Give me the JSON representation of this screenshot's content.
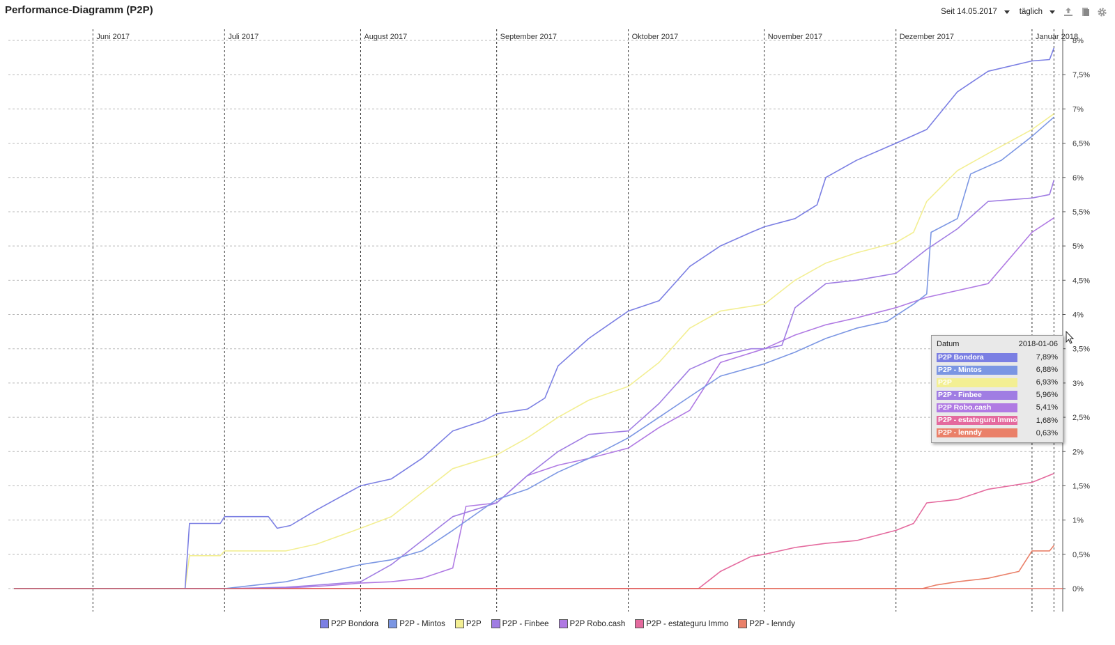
{
  "title": "Performance-Diagramm (P2P)",
  "toolbar": {
    "period_label": "Seit 14.05.2017",
    "interval_label": "täglich",
    "icons": [
      "export-icon",
      "bookmark-icon",
      "gear-icon"
    ]
  },
  "colors": {
    "bondora": "#7b7fe3",
    "mintos": "#7b96e3",
    "p2p": "#f3ef93",
    "finbee": "#a07de3",
    "robocash": "#b07ae3",
    "estateguru": "#e46a9e",
    "lenndy": "#ea8069"
  },
  "chart_data": {
    "type": "line",
    "title": "Performance-Diagramm (P2P)",
    "x_range": [
      "2017-05-14",
      "2018-01-08"
    ],
    "y_range": [
      -0.0,
      0.08
    ],
    "y_axis_side": "right",
    "y_ticks": [
      "8%",
      "7,5%",
      "7%",
      "6,5%",
      "6%",
      "5,5%",
      "5%",
      "4,5%",
      "4%",
      "3,5%",
      "3%",
      "2,5%",
      "2%",
      "1,5%",
      "1%",
      "0,5%",
      "0%"
    ],
    "x_ticks": [
      {
        "date": "2017-06-01",
        "label": "Juni 2017"
      },
      {
        "date": "2017-07-01",
        "label": "Juli 2017"
      },
      {
        "date": "2017-08-01",
        "label": "August 2017"
      },
      {
        "date": "2017-09-01",
        "label": "September 2017"
      },
      {
        "date": "2017-10-01",
        "label": "Oktober 2017"
      },
      {
        "date": "2017-11-01",
        "label": "November 2017"
      },
      {
        "date": "2017-12-01",
        "label": "Dezember 2017"
      },
      {
        "date": "2018-01-01",
        "label": "Januar 2018"
      }
    ],
    "grid": "horizontal dotted, vertical dashed at month starts",
    "legend_position": "bottom",
    "series": [
      {
        "name": "P2P Bondora",
        "color": "#7b7fe3",
        "x": [
          "2017-05-14",
          "2017-06-22",
          "2017-06-23",
          "2017-06-30",
          "2017-07-01",
          "2017-07-11",
          "2017-07-13",
          "2017-07-16",
          "2017-07-22",
          "2017-08-01",
          "2017-08-08",
          "2017-08-15",
          "2017-08-22",
          "2017-08-29",
          "2017-09-01",
          "2017-09-08",
          "2017-09-12",
          "2017-09-15",
          "2017-09-22",
          "2017-10-01",
          "2017-10-08",
          "2017-10-15",
          "2017-10-22",
          "2017-10-29",
          "2017-11-01",
          "2017-11-08",
          "2017-11-13",
          "2017-11-15",
          "2017-11-22",
          "2017-12-01",
          "2017-12-08",
          "2017-12-15",
          "2017-12-22",
          "2018-01-01",
          "2018-01-05",
          "2018-01-06"
        ],
        "y": [
          0,
          0,
          0.0095,
          0.0095,
          0.0105,
          0.0105,
          0.0088,
          0.0092,
          0.0115,
          0.015,
          0.016,
          0.019,
          0.023,
          0.0245,
          0.0255,
          0.0262,
          0.0278,
          0.0325,
          0.0365,
          0.0405,
          0.042,
          0.047,
          0.05,
          0.052,
          0.0528,
          0.054,
          0.056,
          0.06,
          0.0625,
          0.065,
          0.067,
          0.0725,
          0.0755,
          0.077,
          0.0772,
          0.0789
        ]
      },
      {
        "name": "P2P - Mintos",
        "color": "#7b96e3",
        "x": [
          "2017-05-14",
          "2017-06-25",
          "2017-07-01",
          "2017-07-08",
          "2017-07-15",
          "2017-07-22",
          "2017-08-01",
          "2017-08-08",
          "2017-08-15",
          "2017-08-22",
          "2017-09-01",
          "2017-09-08",
          "2017-09-15",
          "2017-09-22",
          "2017-10-01",
          "2017-10-08",
          "2017-10-15",
          "2017-10-22",
          "2017-11-01",
          "2017-11-08",
          "2017-11-15",
          "2017-11-22",
          "2017-11-29",
          "2017-12-05",
          "2017-12-08",
          "2017-12-09",
          "2017-12-15",
          "2017-12-18",
          "2017-12-25",
          "2018-01-01",
          "2018-01-06"
        ],
        "y": [
          0,
          0,
          0,
          0.0005,
          0.001,
          0.002,
          0.0035,
          0.0042,
          0.0055,
          0.0085,
          0.013,
          0.0145,
          0.017,
          0.019,
          0.022,
          0.025,
          0.028,
          0.031,
          0.0328,
          0.0345,
          0.0365,
          0.038,
          0.039,
          0.0415,
          0.043,
          0.052,
          0.054,
          0.0605,
          0.0625,
          0.066,
          0.0688
        ]
      },
      {
        "name": "P2P",
        "color": "#f3ef93",
        "x": [
          "2017-05-14",
          "2017-06-22",
          "2017-06-23",
          "2017-06-30",
          "2017-07-01",
          "2017-07-08",
          "2017-07-15",
          "2017-07-22",
          "2017-08-01",
          "2017-08-08",
          "2017-08-15",
          "2017-08-22",
          "2017-09-01",
          "2017-09-08",
          "2017-09-15",
          "2017-09-22",
          "2017-10-01",
          "2017-10-08",
          "2017-10-15",
          "2017-10-22",
          "2017-11-01",
          "2017-11-08",
          "2017-11-15",
          "2017-11-22",
          "2017-12-01",
          "2017-12-05",
          "2017-12-08",
          "2017-12-15",
          "2017-12-22",
          "2018-01-01",
          "2018-01-06"
        ],
        "y": [
          0,
          0,
          0.0048,
          0.0048,
          0.0055,
          0.0055,
          0.0055,
          0.0065,
          0.0088,
          0.0105,
          0.014,
          0.0175,
          0.0195,
          0.022,
          0.025,
          0.0275,
          0.0295,
          0.033,
          0.038,
          0.0405,
          0.0415,
          0.045,
          0.0475,
          0.049,
          0.0505,
          0.052,
          0.0565,
          0.061,
          0.0635,
          0.067,
          0.0693
        ]
      },
      {
        "name": "P2P - Finbee",
        "color": "#a07de3",
        "x": [
          "2017-05-14",
          "2017-07-01",
          "2017-07-15",
          "2017-07-22",
          "2017-08-01",
          "2017-08-08",
          "2017-08-15",
          "2017-08-22",
          "2017-09-01",
          "2017-09-08",
          "2017-09-15",
          "2017-09-22",
          "2017-10-01",
          "2017-10-08",
          "2017-10-15",
          "2017-10-22",
          "2017-10-29",
          "2017-11-01",
          "2017-11-05",
          "2017-11-08",
          "2017-11-15",
          "2017-11-22",
          "2017-12-01",
          "2017-12-08",
          "2017-12-15",
          "2017-12-22",
          "2018-01-01",
          "2018-01-05",
          "2018-01-06"
        ],
        "y": [
          0,
          0,
          0.0002,
          0.0005,
          0.001,
          0.0035,
          0.007,
          0.0105,
          0.0125,
          0.0165,
          0.02,
          0.0225,
          0.023,
          0.027,
          0.032,
          0.034,
          0.035,
          0.035,
          0.0355,
          0.041,
          0.0445,
          0.045,
          0.046,
          0.0495,
          0.0525,
          0.0565,
          0.057,
          0.0575,
          0.0596
        ]
      },
      {
        "name": "P2P Robo.cash",
        "color": "#b07ae3",
        "x": [
          "2017-05-14",
          "2017-07-01",
          "2017-07-15",
          "2017-07-22",
          "2017-08-01",
          "2017-08-08",
          "2017-08-15",
          "2017-08-22",
          "2017-08-25",
          "2017-09-01",
          "2017-09-08",
          "2017-09-15",
          "2017-09-22",
          "2017-10-01",
          "2017-10-08",
          "2017-10-15",
          "2017-10-22",
          "2017-11-01",
          "2017-11-08",
          "2017-11-15",
          "2017-11-22",
          "2017-12-01",
          "2017-12-08",
          "2017-12-15",
          "2017-12-22",
          "2018-01-01",
          "2018-01-06"
        ],
        "y": [
          0,
          0,
          0.0001,
          0.0003,
          0.0008,
          0.001,
          0.0015,
          0.003,
          0.012,
          0.0125,
          0.0165,
          0.018,
          0.019,
          0.0205,
          0.0235,
          0.026,
          0.033,
          0.035,
          0.037,
          0.0385,
          0.0395,
          0.041,
          0.0425,
          0.0435,
          0.0445,
          0.052,
          0.0541
        ]
      },
      {
        "name": "P2P -  estateguru Immo",
        "color": "#e46a9e",
        "x": [
          "2017-05-14",
          "2017-10-15",
          "2017-10-17",
          "2017-10-22",
          "2017-10-29",
          "2017-11-01",
          "2017-11-08",
          "2017-11-15",
          "2017-11-22",
          "2017-12-01",
          "2017-12-05",
          "2017-12-08",
          "2017-12-15",
          "2017-12-22",
          "2018-01-01",
          "2018-01-06"
        ],
        "y": [
          0,
          0,
          0,
          0.0025,
          0.0047,
          0.005,
          0.006,
          0.0066,
          0.007,
          0.0085,
          0.0095,
          0.0125,
          0.013,
          0.0145,
          0.0155,
          0.0168
        ]
      },
      {
        "name": "P2P - lenndy",
        "color": "#ea8069",
        "x": [
          "2017-05-14",
          "2017-12-07",
          "2017-12-10",
          "2017-12-15",
          "2017-12-22",
          "2017-12-29",
          "2018-01-01",
          "2018-01-05",
          "2018-01-06"
        ],
        "y": [
          0,
          0,
          0.0005,
          0.001,
          0.0015,
          0.0025,
          0.0055,
          0.0055,
          0.0063
        ]
      }
    ]
  },
  "tooltip": {
    "date_label": "Datum",
    "date_value": "2018-01-06",
    "rows": [
      {
        "name": "P2P Bondora",
        "value": "7,89%",
        "color": "#7b7fe3"
      },
      {
        "name": "P2P - Mintos",
        "value": "6,88%",
        "color": "#7b96e3"
      },
      {
        "name": "P2P",
        "value": "6,93%",
        "color": "#f3ef93"
      },
      {
        "name": "P2P - Finbee",
        "value": "5,96%",
        "color": "#a07de3"
      },
      {
        "name": "P2P Robo.cash",
        "value": "5,41%",
        "color": "#b07ae3"
      },
      {
        "name": "P2P -  estateguru  Immo",
        "value": "1,68%",
        "color": "#e46a9e"
      },
      {
        "name": "P2P - lenndy",
        "value": "0,63%",
        "color": "#ea8069"
      }
    ]
  },
  "legend": [
    {
      "name": "P2P Bondora",
      "color": "#7b7fe3"
    },
    {
      "name": "P2P - Mintos",
      "color": "#7b96e3"
    },
    {
      "name": "P2P",
      "color": "#f3ef93"
    },
    {
      "name": "P2P - Finbee",
      "color": "#a07de3"
    },
    {
      "name": "P2P Robo.cash",
      "color": "#b07ae3"
    },
    {
      "name": "P2P -  estateguru  Immo",
      "color": "#e46a9e"
    },
    {
      "name": "P2P - lenndy",
      "color": "#ea8069"
    }
  ]
}
